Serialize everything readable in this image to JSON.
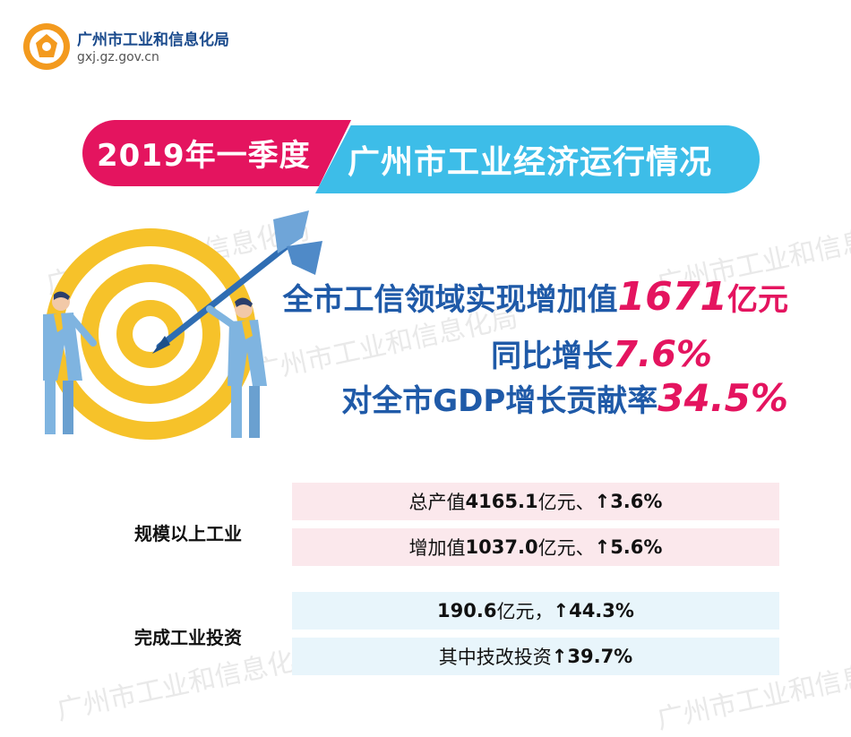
{
  "header": {
    "org_name": "广州市工业和信息化局",
    "url": "gxj.gz.gov.cn"
  },
  "watermark": "广州市工业和信息化局",
  "banner": {
    "left": "2019年一季度",
    "right": "广州市工业经济运行情况"
  },
  "headline": {
    "line1_prefix": "全市工信领域实现增加值",
    "line1_value": "1671",
    "line1_unit": "亿元",
    "line2_prefix": "同比增长",
    "line2_value": "7.6%",
    "line3_prefix": "对全市GDP增长贡献率",
    "line3_value": "34.5%"
  },
  "sections": [
    {
      "label": "规模以上工业",
      "rows": [
        {
          "pre": "总产值",
          "bold1": "4165.1",
          "mid": "亿元、",
          "bold2": "↑3.6%"
        },
        {
          "pre": "增加值",
          "bold1": "1037.0",
          "mid": "亿元、",
          "bold2": "↑5.6%"
        }
      ]
    },
    {
      "label": "完成工业投资",
      "rows": [
        {
          "pre": "",
          "bold1": "190.6",
          "mid": "亿元，",
          "bold2": "↑44.3%"
        },
        {
          "pre": "其中技改投资",
          "bold1": "",
          "mid": "",
          "bold2": "↑39.7%"
        }
      ]
    }
  ],
  "colors": {
    "pink": "#e4145f",
    "cyan": "#3dbde8",
    "blue": "#1f5aa8",
    "target_yellow": "#f6c22a"
  }
}
